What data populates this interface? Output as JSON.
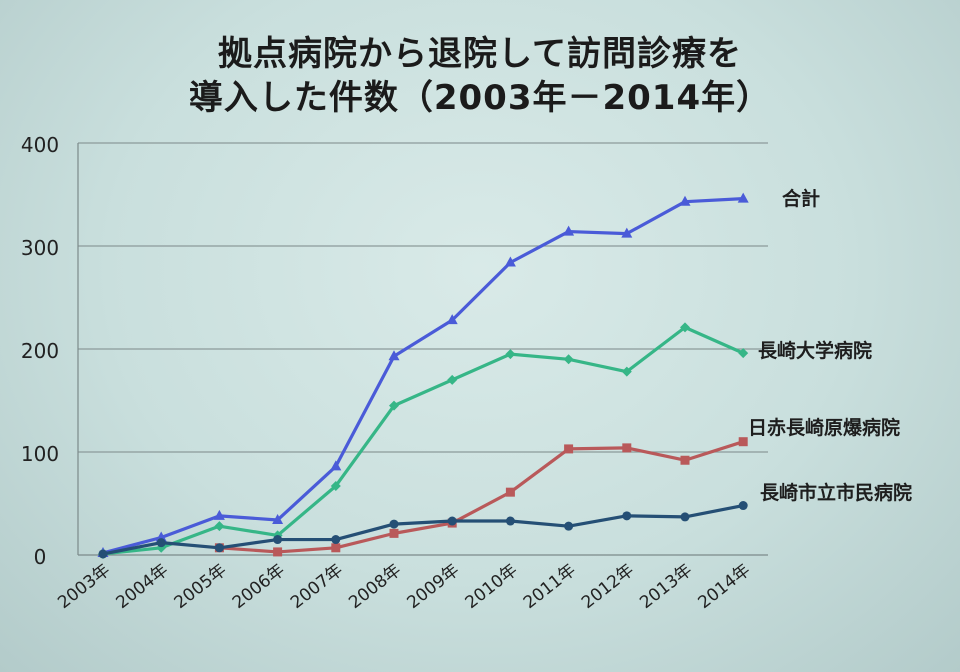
{
  "chart_data": {
    "type": "line",
    "title": [
      "拠点病院から退院して訪問診療を",
      "導入した件数（2003年－2014年）"
    ],
    "categories": [
      "2003年",
      "2004年",
      "2005年",
      "2006年",
      "2007年",
      "2008年",
      "2009年",
      "2010年",
      "2011年",
      "2012年",
      "2013年",
      "2014年"
    ],
    "ylim": [
      0,
      400
    ],
    "yticks": [
      0,
      100,
      200,
      300,
      400
    ],
    "grid": true,
    "legend": "end-of-line labels",
    "series": [
      {
        "name": "合計",
        "color": "#4a5bd8",
        "marker": "triangle",
        "values": [
          2,
          17,
          38,
          34,
          86,
          193,
          228,
          284,
          314,
          312,
          343,
          346
        ]
      },
      {
        "name": "長崎大学病院",
        "color": "#36b687",
        "marker": "diamond",
        "values": [
          1,
          7,
          28,
          19,
          67,
          145,
          170,
          195,
          190,
          178,
          221,
          196
        ]
      },
      {
        "name": "日赤長崎原爆病院",
        "color": "#b9595a",
        "marker": "square",
        "values": [
          null,
          null,
          7,
          3,
          7,
          21,
          31,
          61,
          103,
          104,
          92,
          110
        ]
      },
      {
        "name": "長崎市立市民病院",
        "color": "#254f75",
        "marker": "circle",
        "values": [
          1,
          12,
          7,
          15,
          15,
          30,
          33,
          33,
          28,
          38,
          37,
          48
        ]
      }
    ]
  }
}
